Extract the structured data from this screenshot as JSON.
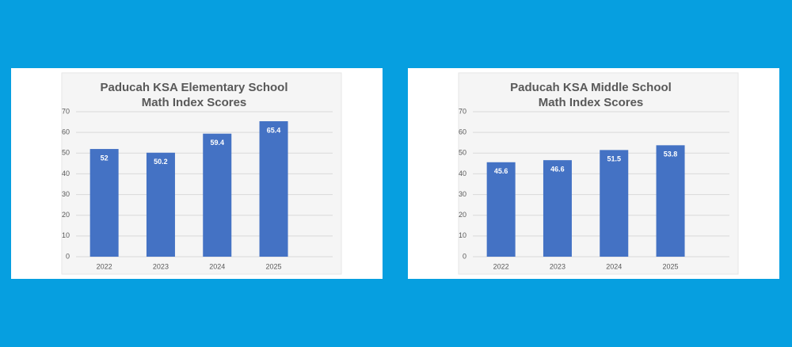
{
  "chart_data": [
    {
      "type": "bar",
      "title": [
        "Paducah KSA Elementary School",
        "Math Index Scores"
      ],
      "categories": [
        "2022",
        "2023",
        "2024",
        "2025"
      ],
      "values": [
        52,
        50.2,
        59.4,
        65.4
      ],
      "color": "#4472c4",
      "ylim": [
        0,
        70
      ],
      "yticks": [
        0,
        10,
        20,
        30,
        40,
        50,
        60,
        70
      ],
      "grid": true
    },
    {
      "type": "bar",
      "title": [
        "Paducah KSA Middle School",
        "Math Index Scores"
      ],
      "categories": [
        "2022",
        "2023",
        "2024",
        "2025"
      ],
      "values": [
        45.6,
        46.6,
        51.5,
        53.8
      ],
      "color": "#4472c4",
      "ylim": [
        0,
        70
      ],
      "yticks": [
        0,
        10,
        20,
        30,
        40,
        50,
        60,
        70
      ],
      "grid": true
    }
  ]
}
